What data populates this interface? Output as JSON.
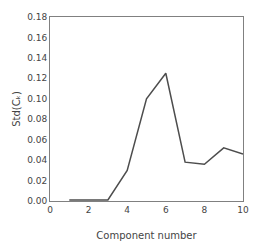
{
  "chart_data": {
    "type": "line",
    "x": [
      1,
      2,
      3,
      4,
      5,
      6,
      7,
      8,
      9,
      10
    ],
    "values": [
      0.001,
      0.001,
      0.001,
      0.03,
      0.1,
      0.125,
      0.038,
      0.036,
      0.052,
      0.046
    ],
    "xlabel": "Component number",
    "ylabel": "Std(Cₖ)",
    "xlim": [
      0,
      10
    ],
    "ylim": [
      0.0,
      0.18
    ],
    "xticks": [
      0,
      2,
      4,
      6,
      8,
      10
    ],
    "yticks": [
      {
        "value": 0,
        "label": "0.00"
      },
      0.02,
      0.04,
      0.06,
      0.08,
      {
        "value": 0.1,
        "label": "0.10"
      },
      0.12,
      0.14,
      0.16,
      0.18
    ],
    "color": "#4d4d4d",
    "grid": false
  }
}
